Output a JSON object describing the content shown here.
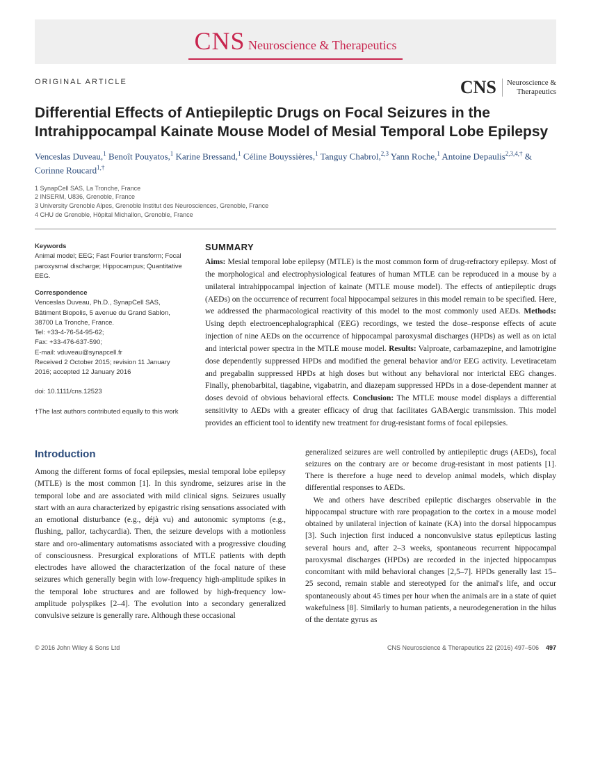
{
  "journal": {
    "banner_big": "CNS",
    "banner_rest": " Neuroscience & Therapeutics",
    "logo_big": "CNS",
    "logo_sub1": "Neuroscience &",
    "logo_sub2": "Therapeutics"
  },
  "article_type": "ORIGINAL ARTICLE",
  "title": "Differential Effects of Antiepileptic Drugs on Focal Seizures in the Intrahippocampal Kainate Mouse Model of Mesial Temporal Lobe Epilepsy",
  "authors_html": "Venceslas Duveau,<sup>1</sup> Benoît Pouyatos,<sup>1</sup> Karine Bressand,<sup>1</sup> Céline Bouyssières,<sup>1</sup> Tanguy Chabrol,<sup>2,3</sup> Yann Roche,<sup>1</sup> Antoine Depaulis<sup>2,3,4,†</sup> & Corinne Roucard<sup>1,†</sup>",
  "affiliations": [
    "1 SynapCell SAS, La Tronche, France",
    "2 INSERM, U836, Grenoble, France",
    "3 University Grenoble Alpes, Grenoble Institut des Neurosciences, Grenoble, France",
    "4 CHU de Grenoble, Hôpital Michallon, Grenoble, France"
  ],
  "meta": {
    "keywords_label": "Keywords",
    "keywords": "Animal model; EEG; Fast Fourier transform; Focal paroxysmal discharge; Hippocampus; Quantitative EEG.",
    "correspondence_label": "Correspondence",
    "correspondence": "Venceslas Duveau, Ph.D., SynapCell SAS, Bâtiment Biopolis, 5 avenue du Grand Sablon, 38700 La Tronche, France.",
    "tel": "Tel: +33-4-76-54-95-62;",
    "fax": "Fax: +33-476-637-590;",
    "email": "E-mail: vduveau@synapcell.fr",
    "received": "Received 2 October 2015; revision 11 January 2016; accepted 12 January 2016",
    "doi": "doi: 10.1111/cns.12523",
    "note": "†The last authors contributed equally to this work"
  },
  "summary": {
    "heading": "SUMMARY",
    "aims_label": "Aims:",
    "aims": " Mesial temporal lobe epilepsy (MTLE) is the most common form of drug-refractory epilepsy. Most of the morphological and electrophysiological features of human MTLE can be reproduced in a mouse by a unilateral intrahippocampal injection of kainate (MTLE mouse model). The effects of antiepileptic drugs (AEDs) on the occurrence of recurrent focal hippocampal seizures in this model remain to be specified. Here, we addressed the pharmacological reactivity of this model to the most commonly used AEDs. ",
    "methods_label": "Methods:",
    "methods": " Using depth electroencephalographical (EEG) recordings, we tested the dose–response effects of acute injection of nine AEDs on the occurrence of hippocampal paroxysmal discharges (HPDs) as well as on ictal and interictal power spectra in the MTLE mouse model. ",
    "results_label": "Results:",
    "results": " Valproate, carbamazepine, and lamotrigine dose dependently suppressed HPDs and modified the general behavior and/or EEG activity. Levetiracetam and pregabalin suppressed HPDs at high doses but without any behavioral nor interictal EEG changes. Finally, phenobarbital, tiagabine, vigabatrin, and diazepam suppressed HPDs in a dose-dependent manner at doses devoid of obvious behavioral effects. ",
    "conclusion_label": "Conclusion:",
    "conclusion": " The MTLE mouse model displays a differential sensitivity to AEDs with a greater efficacy of drug that facilitates GABAergic transmission. This model provides an efficient tool to identify new treatment for drug-resistant forms of focal epilepsies."
  },
  "intro": {
    "heading": "Introduction",
    "p1": "Among the different forms of focal epilepsies, mesial temporal lobe epilepsy (MTLE) is the most common [1]. In this syndrome, seizures arise in the temporal lobe and are associated with mild clinical signs. Seizures usually start with an aura characterized by epigastric rising sensations associated with an emotional disturbance (e.g., déjà vu) and autonomic symptoms (e.g., flushing, pallor, tachycardia). Then, the seizure develops with a motionless stare and oro-alimentary automatisms associated with a progressive clouding of consciousness. Presurgical explorations of MTLE patients with depth electrodes have allowed the characterization of the focal nature of these seizures which generally begin with low-frequency high-amplitude spikes in the temporal lobe structures and are followed by high-frequency low-amplitude polyspikes [2–4]. The evolution into a secondary generalized convulsive seizure is generally rare. Although these occasional",
    "p2": "generalized seizures are well controlled by antiepileptic drugs (AEDs), focal seizures on the contrary are or become drug-resistant in most patients [1]. There is therefore a huge need to develop animal models, which display differential responses to AEDs.",
    "p3": "We and others have described epileptic discharges observable in the hippocampal structure with rare propagation to the cortex in a mouse model obtained by unilateral injection of kainate (KA) into the dorsal hippocampus [3]. Such injection first induced a nonconvulsive status epilepticus lasting several hours and, after 2–3 weeks, spontaneous recurrent hippocampal paroxysmal discharges (HPDs) are recorded in the injected hippocampus concomitant with mild behavioral changes [2,5–7]. HPDs generally last 15–25 second, remain stable and stereotyped for the animal's life, and occur spontaneously about 45 times per hour when the animals are in a state of quiet wakefulness [8]. Similarly to human patients, a neurodegeneration in the hilus of the dentate gyrus as"
  },
  "footer": {
    "copyright": "© 2016 John Wiley & Sons Ltd",
    "citation": "CNS Neuroscience & Therapeutics 22 (2016) 497–506",
    "page": "497"
  },
  "colors": {
    "brand": "#c8254e",
    "author_blue": "#2a4a7a",
    "banner_bg": "#efefef"
  }
}
